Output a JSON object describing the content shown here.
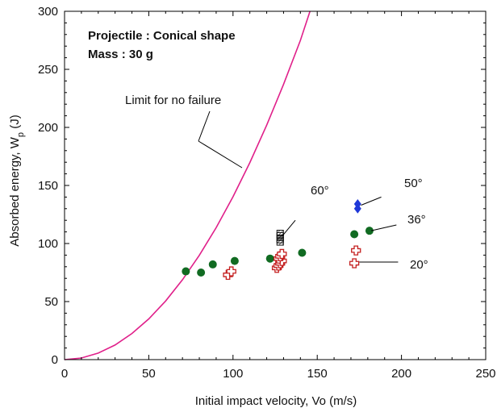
{
  "chart_data": {
    "type": "scatter",
    "title": "",
    "xlabel": "Initial impact velocity, Vo (m/s)",
    "ylabel": "Absorbed energy, W",
    "ylabel_subscript": "p",
    "ylabel_unit": "(J)",
    "xlim": [
      0,
      250
    ],
    "ylim": [
      0,
      300
    ],
    "xticks": [
      0,
      50,
      100,
      150,
      200,
      250
    ],
    "yticks": [
      0,
      50,
      100,
      150,
      200,
      250,
      300
    ],
    "grid": false,
    "info_lines": [
      "Projectile : Conical shape",
      "Mass : 30 g"
    ],
    "limit_curve": {
      "label": "Limit for no failure",
      "color": "#e0208a",
      "x": [
        0,
        10,
        20,
        30,
        40,
        50,
        60,
        70,
        80,
        90,
        100,
        110,
        120,
        130,
        140,
        145.7
      ],
      "y": [
        0,
        1.4,
        5.6,
        12.6,
        22.5,
        35.1,
        50.5,
        68.8,
        89.8,
        113.6,
        140.3,
        169.7,
        202,
        237,
        274.9,
        300
      ]
    },
    "series": [
      {
        "label": "36°",
        "marker": "circle",
        "color": "#116b22",
        "x": [
          72,
          81,
          88,
          101,
          122,
          141,
          172,
          181
        ],
        "y": [
          76,
          75,
          82,
          85,
          87,
          92,
          108,
          111
        ]
      },
      {
        "label": "20°",
        "marker": "plus",
        "color": "#c41f1f",
        "x": [
          97,
          99,
          126,
          127,
          128,
          129,
          127,
          128,
          129,
          172,
          173
        ],
        "y": [
          73,
          76,
          79,
          81,
          83,
          85,
          87,
          89,
          91,
          83,
          94
        ]
      },
      {
        "label": "60°",
        "marker": "square",
        "color": "#111111",
        "x": [
          128,
          128,
          128,
          128,
          128
        ],
        "y": [
          101,
          103,
          105,
          107,
          109
        ]
      },
      {
        "label": "50°",
        "marker": "diamond",
        "color": "#1f38d8",
        "x": [
          174,
          174
        ],
        "y": [
          130,
          134
        ]
      }
    ]
  }
}
